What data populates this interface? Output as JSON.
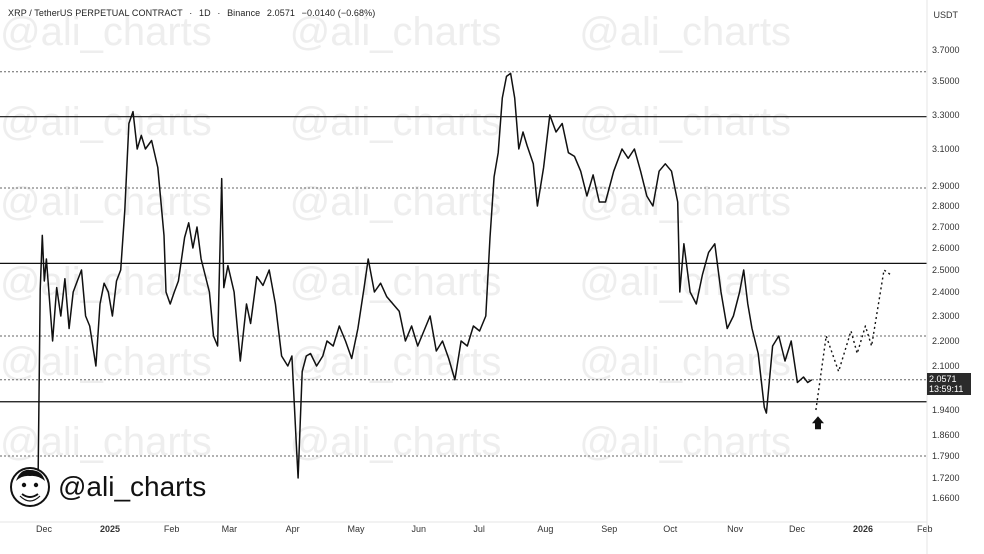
{
  "header": {
    "symbol": "XRP / TetherUS PERPETUAL CONTRACT",
    "interval": "1D",
    "exchange": "Binance",
    "price": "2.0571",
    "change": "−0.0140 (−0.68%)",
    "currency": "USDT"
  },
  "watermark": {
    "text": "@ali_charts"
  },
  "brand": {
    "handle": "@ali_charts"
  },
  "price_tag": {
    "price": "2.0571",
    "countdown": "13:59:11"
  },
  "chart_data": {
    "type": "line",
    "y_axis_ticks": [
      "3.7000",
      "3.5000",
      "3.3000",
      "3.1000",
      "2.9000",
      "2.8000",
      "2.7000",
      "2.6000",
      "2.5000",
      "2.4000",
      "2.3000",
      "2.2000",
      "2.1000",
      "1.9400",
      "1.8600",
      "1.7900",
      "1.7200",
      "1.6600"
    ],
    "x_axis_labels": [
      "Dec",
      "2025",
      "Feb",
      "Mar",
      "Apr",
      "May",
      "Jun",
      "Jul",
      "Aug",
      "Sep",
      "Oct",
      "Nov",
      "Dec",
      "2026",
      "Feb"
    ],
    "horizontal_levels": [
      {
        "value": 3.56,
        "style": "dotted"
      },
      {
        "value": 3.29,
        "style": "solid"
      },
      {
        "value": 2.89,
        "style": "dotted"
      },
      {
        "value": 2.53,
        "style": "solid"
      },
      {
        "value": 2.22,
        "style": "dotted"
      },
      {
        "value": 2.05,
        "style": "dotted"
      },
      {
        "value": 1.97,
        "style": "solid"
      },
      {
        "value": 1.79,
        "style": "dotted"
      }
    ],
    "series": [
      {
        "values": [
          [
            "2024-12-03",
            1.72
          ],
          [
            "2024-12-04",
            2.41
          ],
          [
            "2024-12-05",
            2.66
          ],
          [
            "2024-12-06",
            2.45
          ],
          [
            "2024-12-07",
            2.55
          ],
          [
            "2024-12-10",
            2.2
          ],
          [
            "2024-12-12",
            2.42
          ],
          [
            "2024-12-14",
            2.3
          ],
          [
            "2024-12-16",
            2.46
          ],
          [
            "2024-12-18",
            2.25
          ],
          [
            "2024-12-20",
            2.4
          ],
          [
            "2024-12-22",
            2.45
          ],
          [
            "2024-12-24",
            2.5
          ],
          [
            "2024-12-26",
            2.3
          ],
          [
            "2024-12-28",
            2.26
          ],
          [
            "2024-12-31",
            2.1
          ],
          [
            "2025-01-02",
            2.35
          ],
          [
            "2025-01-04",
            2.44
          ],
          [
            "2025-01-06",
            2.4
          ],
          [
            "2025-01-08",
            2.3
          ],
          [
            "2025-01-10",
            2.45
          ],
          [
            "2025-01-12",
            2.5
          ],
          [
            "2025-01-14",
            2.78
          ],
          [
            "2025-01-16",
            3.25
          ],
          [
            "2025-01-18",
            3.32
          ],
          [
            "2025-01-20",
            3.1
          ],
          [
            "2025-01-22",
            3.18
          ],
          [
            "2025-01-24",
            3.1
          ],
          [
            "2025-01-27",
            3.15
          ],
          [
            "2025-01-30",
            3.0
          ],
          [
            "2025-02-02",
            2.66
          ],
          [
            "2025-02-03",
            2.4
          ],
          [
            "2025-02-05",
            2.35
          ],
          [
            "2025-02-07",
            2.4
          ],
          [
            "2025-02-09",
            2.45
          ],
          [
            "2025-02-12",
            2.65
          ],
          [
            "2025-02-14",
            2.72
          ],
          [
            "2025-02-16",
            2.6
          ],
          [
            "2025-02-18",
            2.7
          ],
          [
            "2025-02-20",
            2.55
          ],
          [
            "2025-02-24",
            2.4
          ],
          [
            "2025-02-26",
            2.22
          ],
          [
            "2025-02-28",
            2.18
          ],
          [
            "2025-03-02",
            2.94
          ],
          [
            "2025-03-03",
            2.42
          ],
          [
            "2025-03-05",
            2.52
          ],
          [
            "2025-03-08",
            2.4
          ],
          [
            "2025-03-11",
            2.12
          ],
          [
            "2025-03-14",
            2.35
          ],
          [
            "2025-03-16",
            2.27
          ],
          [
            "2025-03-19",
            2.47
          ],
          [
            "2025-03-22",
            2.43
          ],
          [
            "2025-03-25",
            2.5
          ],
          [
            "2025-03-28",
            2.35
          ],
          [
            "2025-03-31",
            2.14
          ],
          [
            "2025-04-03",
            2.1
          ],
          [
            "2025-04-05",
            2.14
          ],
          [
            "2025-04-07",
            1.85
          ],
          [
            "2025-04-08",
            1.72
          ],
          [
            "2025-04-10",
            2.08
          ],
          [
            "2025-04-12",
            2.14
          ],
          [
            "2025-04-14",
            2.15
          ],
          [
            "2025-04-17",
            2.1
          ],
          [
            "2025-04-20",
            2.14
          ],
          [
            "2025-04-22",
            2.2
          ],
          [
            "2025-04-25",
            2.18
          ],
          [
            "2025-04-28",
            2.26
          ],
          [
            "2025-05-01",
            2.2
          ],
          [
            "2025-05-04",
            2.13
          ],
          [
            "2025-05-07",
            2.25
          ],
          [
            "2025-05-10",
            2.42
          ],
          [
            "2025-05-12",
            2.55
          ],
          [
            "2025-05-15",
            2.4
          ],
          [
            "2025-05-18",
            2.44
          ],
          [
            "2025-05-21",
            2.38
          ],
          [
            "2025-05-24",
            2.35
          ],
          [
            "2025-05-27",
            2.32
          ],
          [
            "2025-05-30",
            2.2
          ],
          [
            "2025-06-02",
            2.26
          ],
          [
            "2025-06-05",
            2.18
          ],
          [
            "2025-06-08",
            2.24
          ],
          [
            "2025-06-11",
            2.3
          ],
          [
            "2025-06-14",
            2.16
          ],
          [
            "2025-06-17",
            2.2
          ],
          [
            "2025-06-20",
            2.13
          ],
          [
            "2025-06-23",
            2.05
          ],
          [
            "2025-06-26",
            2.2
          ],
          [
            "2025-06-29",
            2.18
          ],
          [
            "2025-07-02",
            2.26
          ],
          [
            "2025-07-05",
            2.24
          ],
          [
            "2025-07-08",
            2.3
          ],
          [
            "2025-07-10",
            2.65
          ],
          [
            "2025-07-12",
            2.95
          ],
          [
            "2025-07-14",
            3.08
          ],
          [
            "2025-07-16",
            3.4
          ],
          [
            "2025-07-18",
            3.53
          ],
          [
            "2025-07-20",
            3.55
          ],
          [
            "2025-07-22",
            3.4
          ],
          [
            "2025-07-24",
            3.1
          ],
          [
            "2025-07-26",
            3.2
          ],
          [
            "2025-07-28",
            3.12
          ],
          [
            "2025-07-31",
            3.02
          ],
          [
            "2025-08-02",
            2.8
          ],
          [
            "2025-08-05",
            3.0
          ],
          [
            "2025-08-08",
            3.3
          ],
          [
            "2025-08-11",
            3.2
          ],
          [
            "2025-08-14",
            3.25
          ],
          [
            "2025-08-17",
            3.08
          ],
          [
            "2025-08-20",
            3.06
          ],
          [
            "2025-08-23",
            2.98
          ],
          [
            "2025-08-26",
            2.85
          ],
          [
            "2025-08-29",
            2.96
          ],
          [
            "2025-09-01",
            2.82
          ],
          [
            "2025-09-04",
            2.82
          ],
          [
            "2025-09-08",
            2.98
          ],
          [
            "2025-09-12",
            3.1
          ],
          [
            "2025-09-15",
            3.05
          ],
          [
            "2025-09-18",
            3.1
          ],
          [
            "2025-09-21",
            2.98
          ],
          [
            "2025-09-24",
            2.85
          ],
          [
            "2025-09-27",
            2.8
          ],
          [
            "2025-09-30",
            2.98
          ],
          [
            "2025-10-03",
            3.02
          ],
          [
            "2025-10-06",
            2.98
          ],
          [
            "2025-10-09",
            2.82
          ],
          [
            "2025-10-10",
            2.4
          ],
          [
            "2025-10-12",
            2.62
          ],
          [
            "2025-10-15",
            2.4
          ],
          [
            "2025-10-18",
            2.35
          ],
          [
            "2025-10-21",
            2.48
          ],
          [
            "2025-10-24",
            2.58
          ],
          [
            "2025-10-27",
            2.62
          ],
          [
            "2025-10-30",
            2.4
          ],
          [
            "2025-11-02",
            2.25
          ],
          [
            "2025-11-05",
            2.3
          ],
          [
            "2025-11-08",
            2.4
          ],
          [
            "2025-11-10",
            2.5
          ],
          [
            "2025-11-12",
            2.35
          ],
          [
            "2025-11-14",
            2.25
          ],
          [
            "2025-11-17",
            2.15
          ],
          [
            "2025-11-20",
            1.95
          ],
          [
            "2025-11-21",
            1.93
          ],
          [
            "2025-11-24",
            2.18
          ],
          [
            "2025-11-27",
            2.22
          ],
          [
            "2025-11-30",
            2.12
          ],
          [
            "2025-12-03",
            2.2
          ],
          [
            "2025-12-06",
            2.04
          ],
          [
            "2025-12-09",
            2.06
          ],
          [
            "2025-12-11",
            2.04
          ],
          [
            "2025-12-13",
            2.05
          ]
        ]
      },
      {
        "style": "dotted",
        "values": [
          [
            "2025-12-15",
            1.94
          ],
          [
            "2025-12-20",
            2.22
          ],
          [
            "2025-12-26",
            2.08
          ],
          [
            "2026-01-01",
            2.24
          ],
          [
            "2026-01-04",
            2.15
          ],
          [
            "2026-01-08",
            2.26
          ],
          [
            "2026-01-11",
            2.18
          ],
          [
            "2026-01-17",
            2.5
          ],
          [
            "2026-01-20",
            2.48
          ]
        ]
      }
    ],
    "annotations": [
      {
        "type": "arrow-up",
        "date": "2025-12-16",
        "value": 1.92
      }
    ]
  }
}
